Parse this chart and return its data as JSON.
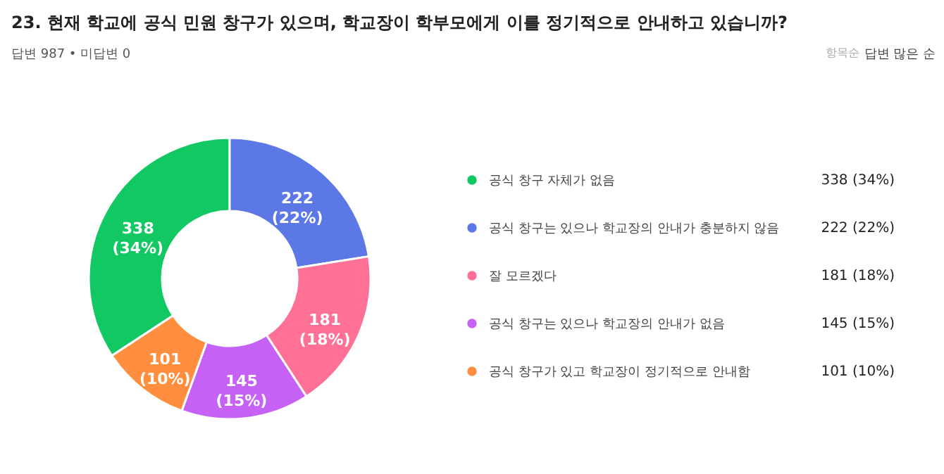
{
  "chart_data": {
    "type": "donut",
    "title": "23. 현재 학교에 공식 민원 창구가 있으며, 학교장이 학부모에게 이를 정기적으로 안내하고 있습니까?",
    "subtitle": "답변 987 • 미답변 0",
    "annotations": [
      "항목순",
      "답변 많은 순"
    ],
    "categories": [
      "공식 창구 자체가 없음",
      "공식 창구는 있으나 학교장의 안내가 충분하지 않음",
      "잘 모르겠다",
      "공식 창구는 있으나 학교장의 안내가 없음",
      "공식 창구가 있고 학교장이 정기적으로 안내함"
    ],
    "values": [
      338,
      222,
      181,
      145,
      101
    ],
    "colors": [
      "#12c862",
      "#5b78e6",
      "#ff7096",
      "#c562f5",
      "#ff8f3e"
    ],
    "value_labels": [
      "338 (34%)",
      "222 (22%)",
      "181 (18%)",
      "145 (15%)",
      "101 (10%)"
    ],
    "data_labels": true,
    "legend": "right"
  }
}
